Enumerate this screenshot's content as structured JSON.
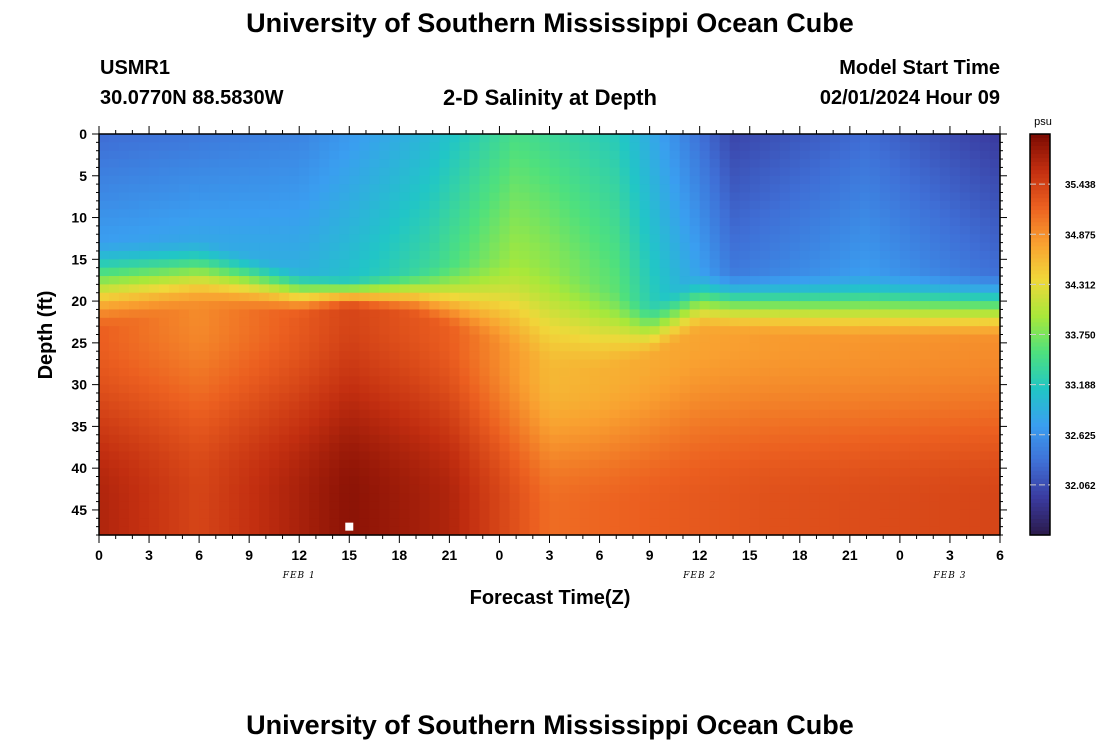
{
  "title": "University of Southern Mississippi Ocean Cube",
  "footer_title": "University of Southern Mississippi Ocean Cube",
  "station": {
    "id": "USMR1",
    "coords": "30.0770N  88.5830W"
  },
  "plot_title": "2-D Salinity at Depth",
  "model_start": {
    "label": "Model Start Time",
    "value": "02/01/2024 Hour 09"
  },
  "chart_data": {
    "type": "heatmap",
    "variable": "Salinity",
    "units": "psu",
    "xlabel": "Forecast Time(Z)",
    "ylabel": "Depth (ft)",
    "x_hours": [
      0,
      54
    ],
    "x_tick_labels": [
      "0",
      "3",
      "6",
      "9",
      "12",
      "15",
      "18",
      "21",
      "0",
      "3",
      "6",
      "9",
      "12",
      "15",
      "18",
      "21",
      "0",
      "3",
      "6"
    ],
    "x_date_labels": [
      {
        "text": "FEB 1",
        "hour": 12
      },
      {
        "text": "FEB 2",
        "hour": 36
      },
      {
        "text": "FEB 3",
        "hour": 51
      }
    ],
    "ylim": [
      0,
      48
    ],
    "y_ticks": [
      0,
      5,
      10,
      15,
      20,
      25,
      30,
      35,
      40,
      45
    ],
    "y_inverted": true,
    "colorbar": {
      "min": 31.5,
      "max": 36.0,
      "labels": [
        "35.438",
        "34.875",
        "34.312",
        "33.750",
        "33.188",
        "32.625",
        "32.062"
      ],
      "colors": [
        "#2b1a4a",
        "#3a3a9e",
        "#3f6fd6",
        "#3a9ef0",
        "#21c6c6",
        "#4ee07e",
        "#a8e83a",
        "#f0d83a",
        "#f9a030",
        "#ec6020",
        "#c22e10",
        "#7a0a02"
      ]
    },
    "halocline_depth_ft": [
      {
        "hour": 0,
        "top": 12,
        "bottom": 24
      },
      {
        "hour": 6,
        "top": 12,
        "bottom": 21
      },
      {
        "hour": 12,
        "top": 16,
        "bottom": 22
      },
      {
        "hour": 15,
        "top": 17,
        "bottom": 21
      },
      {
        "hour": 19,
        "top": 16,
        "bottom": 22
      },
      {
        "hour": 24,
        "top": 14,
        "bottom": 26
      },
      {
        "hour": 27,
        "top": 14,
        "bottom": 29
      },
      {
        "hour": 30,
        "top": 17,
        "bottom": 29
      },
      {
        "hour": 33,
        "top": 20,
        "bottom": 27
      },
      {
        "hour": 36,
        "top": 16,
        "bottom": 24
      },
      {
        "hour": 45,
        "top": 16,
        "bottom": 25
      },
      {
        "hour": 54,
        "top": 16,
        "bottom": 25
      }
    ],
    "surface_salinity_psu": [
      {
        "hour": 0,
        "value": 32.3
      },
      {
        "hour": 12,
        "value": 32.5
      },
      {
        "hour": 20,
        "value": 33.0
      },
      {
        "hour": 25,
        "value": 33.5
      },
      {
        "hour": 31,
        "value": 33.2
      },
      {
        "hour": 38,
        "value": 32.0
      },
      {
        "hour": 46,
        "value": 32.3
      },
      {
        "hour": 54,
        "value": 31.9
      }
    ],
    "bottom_salinity_psu": [
      {
        "hour": 0,
        "value": 35.7
      },
      {
        "hour": 6,
        "value": 35.4
      },
      {
        "hour": 15,
        "value": 35.9
      },
      {
        "hour": 21,
        "value": 35.7
      },
      {
        "hour": 27,
        "value": 35.1
      },
      {
        "hour": 33,
        "value": 35.2
      },
      {
        "hour": 40,
        "value": 35.3
      },
      {
        "hour": 54,
        "value": 35.4
      }
    ],
    "marker": {
      "hour": 15,
      "depth_ft": 47
    }
  }
}
